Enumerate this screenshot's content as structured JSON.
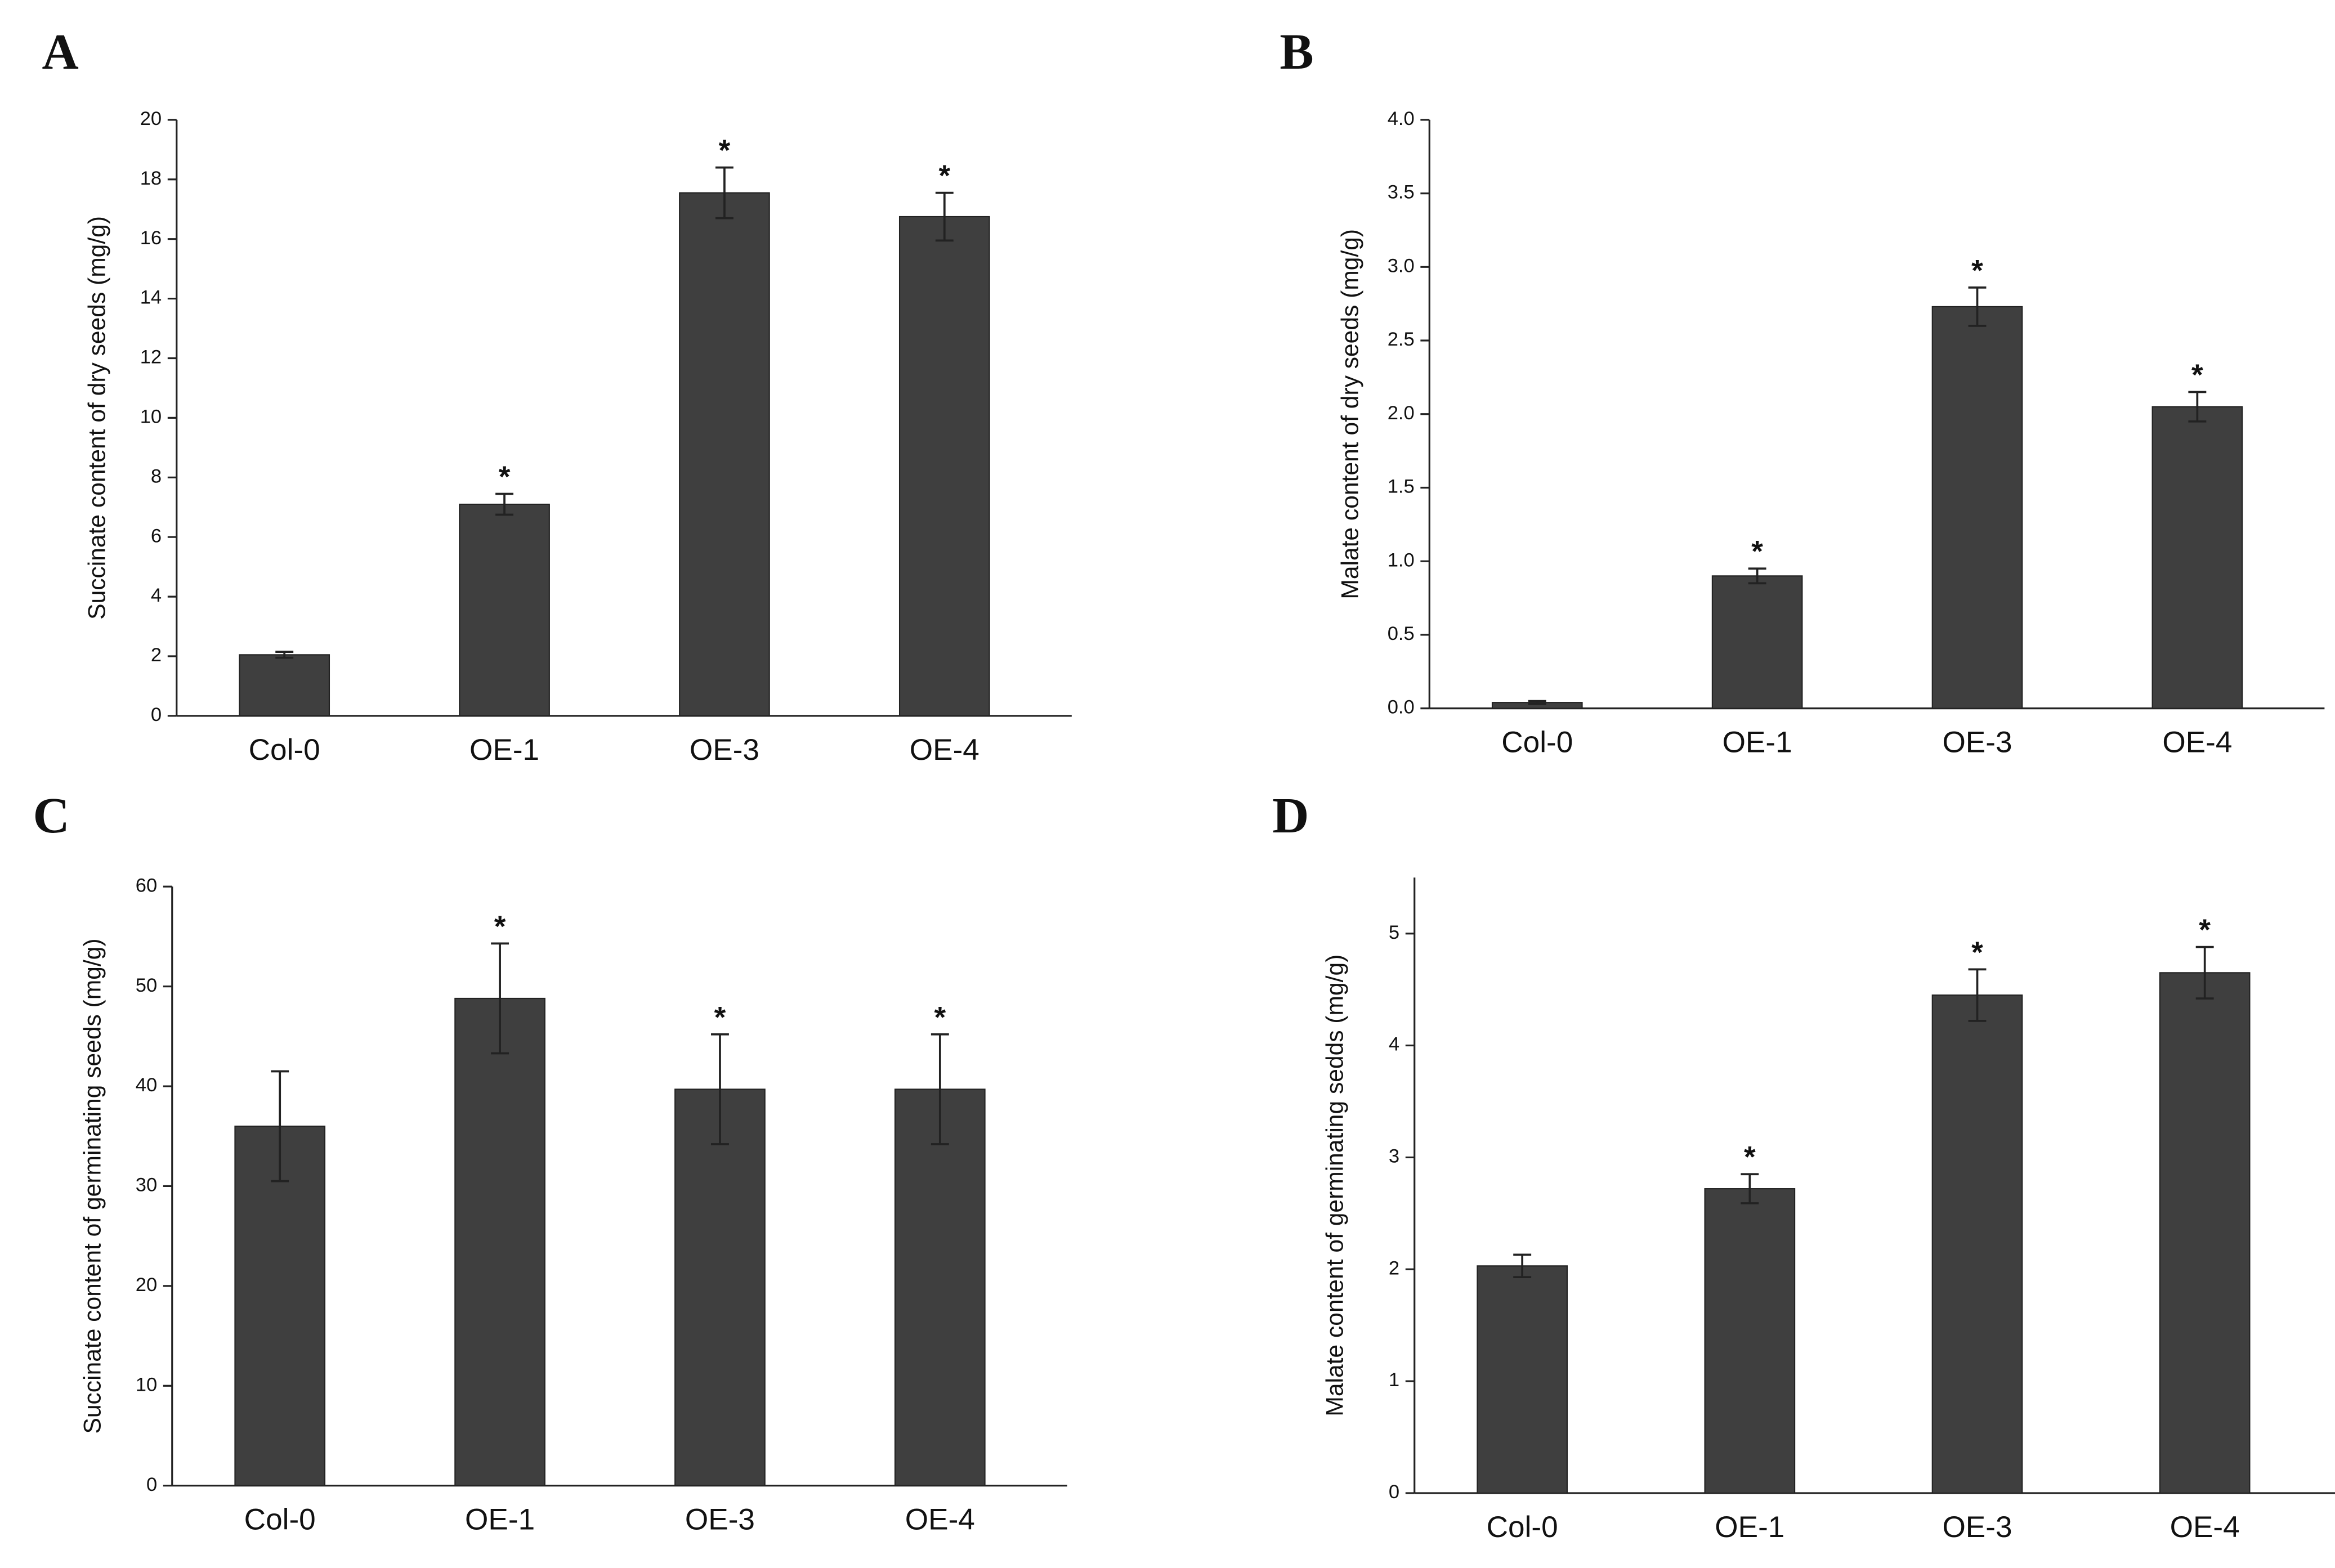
{
  "chart_data": [
    {
      "type": "bar",
      "panel": "A",
      "ylabel": "Succinate content of dry seeds (mg/g)",
      "categories": [
        "Col-0",
        "OE-1",
        "OE-3",
        "OE-4"
      ],
      "values": [
        2.05,
        7.1,
        17.55,
        16.75
      ],
      "errors": [
        0.1,
        0.35,
        0.85,
        0.8
      ],
      "significance": [
        null,
        "*",
        "*",
        "*"
      ],
      "color": "#3f3f3f",
      "ylim": [
        0,
        20
      ],
      "yticks": [
        0,
        2,
        4,
        6,
        8,
        10,
        12,
        14,
        16,
        18,
        20
      ]
    },
    {
      "type": "bar",
      "panel": "B",
      "ylabel": "Malate content of dry seeds (mg/g)",
      "categories": [
        "Col-0",
        "OE-1",
        "OE-3",
        "OE-4"
      ],
      "values": [
        0.04,
        0.9,
        2.73,
        2.05
      ],
      "errors": [
        0.01,
        0.05,
        0.13,
        0.1
      ],
      "significance": [
        null,
        "*",
        "*",
        "*"
      ],
      "color": "#3f3f3f",
      "ylim": [
        0,
        4
      ],
      "yticks": [
        {
          "value": 0,
          "label": "0.0"
        },
        0.5,
        {
          "value": 1,
          "label": "1.0"
        },
        1.5,
        {
          "value": 2,
          "label": "2.0"
        },
        2.5,
        {
          "value": 3,
          "label": "3.0"
        },
        3.5,
        {
          "value": 4,
          "label": "4.0"
        }
      ]
    },
    {
      "type": "bar",
      "panel": "C",
      "ylabel": "Succinate content of germinating seeds (mg/g)",
      "categories": [
        "Col-0",
        "OE-1",
        "OE-3",
        "OE-4"
      ],
      "values": [
        36,
        48.8,
        39.7,
        39.7
      ],
      "errors": [
        5.5,
        5.5,
        5.5,
        5.5
      ],
      "significance": [
        null,
        "*",
        "*",
        "*"
      ],
      "color": "#3f3f3f",
      "ylim": [
        0,
        60
      ],
      "yticks": [
        0,
        10,
        20,
        30,
        40,
        50,
        60
      ]
    },
    {
      "type": "bar",
      "panel": "D",
      "ylabel": "Malate content of germinating sedds (mg/g)",
      "categories": [
        "Col-0",
        "OE-1",
        "OE-3",
        "OE-4"
      ],
      "values": [
        2.03,
        2.72,
        4.45,
        4.65
      ],
      "errors": [
        0.1,
        0.13,
        0.23,
        0.23
      ],
      "significance": [
        null,
        "*",
        "*",
        "*"
      ],
      "color": "#3f3f3f",
      "ylim": [
        0,
        5.5
      ],
      "yticks": [
        0,
        1,
        2,
        3,
        4,
        5
      ]
    }
  ]
}
